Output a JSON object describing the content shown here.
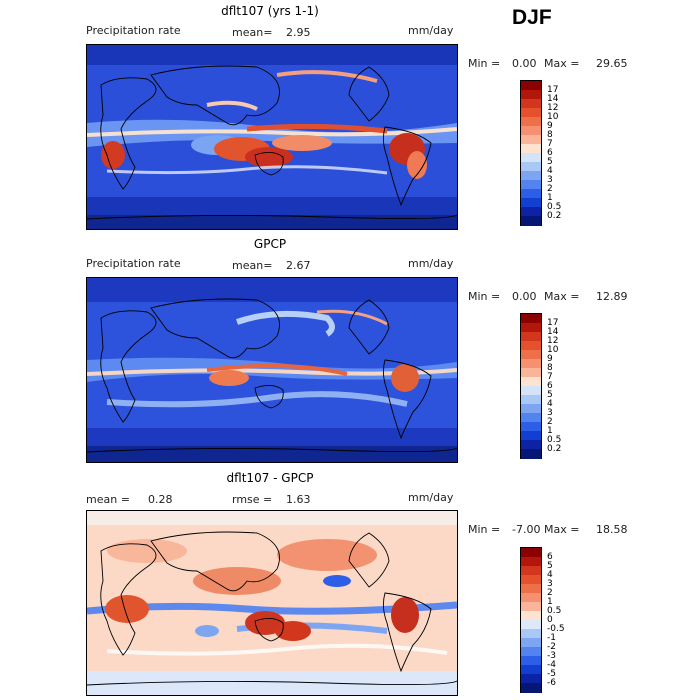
{
  "season": "DJF",
  "panels": [
    {
      "title": "dflt107 (yrs 1-1)",
      "left_label": "Precipitation rate",
      "center_label": "mean=",
      "center_value": "2.95",
      "units": "mm/day",
      "min_label": "Min =",
      "min_value": "0.00",
      "max_label": "Max =",
      "max_value": "29.65",
      "colorbar": {
        "levels": [
          "17",
          "14",
          "12",
          "10",
          "9",
          "8",
          "7",
          "6",
          "5",
          "4",
          "3",
          "2",
          "1",
          "0.5",
          "0.2"
        ],
        "colors": [
          "#8b0000",
          "#b3170c",
          "#d2361c",
          "#e5512c",
          "#ee7048",
          "#f59170",
          "#f9b49a",
          "#fde3d0",
          "#d5e3f8",
          "#aac8f5",
          "#7ea5f2",
          "#5283ee",
          "#2c5ee8",
          "#123fd2",
          "#0c23a6",
          "#061674"
        ]
      }
    },
    {
      "title": "GPCP",
      "left_label": "Precipitation rate",
      "center_label": "mean=",
      "center_value": "2.67",
      "units": "mm/day",
      "min_label": "Min =",
      "min_value": "0.00",
      "max_label": "Max =",
      "max_value": "12.89",
      "colorbar": {
        "levels": [
          "17",
          "14",
          "12",
          "10",
          "9",
          "8",
          "7",
          "6",
          "5",
          "4",
          "3",
          "2",
          "1",
          "0.5",
          "0.2"
        ],
        "colors": [
          "#8b0000",
          "#b3170c",
          "#d2361c",
          "#e5512c",
          "#ee7048",
          "#f59170",
          "#f9b49a",
          "#fde3d0",
          "#d5e3f8",
          "#aac8f5",
          "#7ea5f2",
          "#5283ee",
          "#2c5ee8",
          "#123fd2",
          "#0c23a6",
          "#061674"
        ]
      }
    },
    {
      "title": "dflt107 - GPCP",
      "left_label": "mean =",
      "left_value": "0.28",
      "center_label": "rmse =",
      "center_value": "1.63",
      "units": "mm/day",
      "min_label": "Min =",
      "min_value": "-7.00",
      "max_label": "Max =",
      "max_value": "18.58",
      "colorbar": {
        "levels": [
          "6",
          "5",
          "4",
          "3",
          "2",
          "1",
          "0.5",
          "0",
          "-0.5",
          "-1",
          "-2",
          "-3",
          "-4",
          "-5",
          "-6"
        ],
        "colors": [
          "#8b0000",
          "#b3170c",
          "#d2361c",
          "#e5512c",
          "#ee7048",
          "#f59170",
          "#f9b49a",
          "#fde3d0",
          "#dde8fa",
          "#aac8f5",
          "#7ea5f2",
          "#5283ee",
          "#2c5ee8",
          "#123fd2",
          "#0c23a6",
          "#061674"
        ]
      }
    }
  ]
}
